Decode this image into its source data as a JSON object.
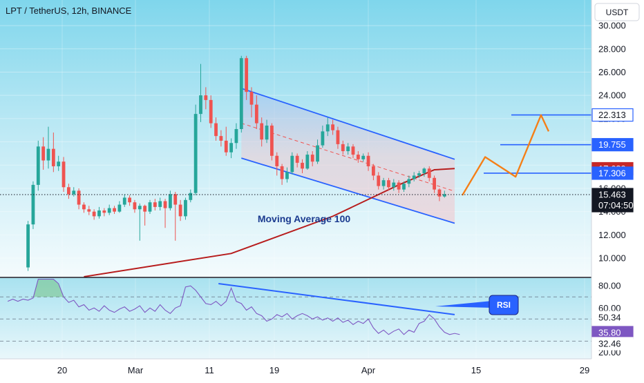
{
  "header": {
    "symbol": "LPT / TetherUS, 12h, BINANCE",
    "currency_button": "USDT"
  },
  "colors": {
    "up": "#26a69a",
    "down": "#ef5350",
    "channel": "#2962ff",
    "ma": "#b71c1c",
    "projection": "#f57f17",
    "rsi_line": "#7e57c2",
    "label_blue": "#2962ff",
    "label_red": "#c62828",
    "label_black": "#131722",
    "label_purple": "#7e57c2"
  },
  "chart_data": [
    {
      "type": "candlestick",
      "pane": "price",
      "title": "LPT / TetherUS, 12h, BINANCE",
      "ylim": [
        8.4,
        32.2
      ],
      "y_ticks": [
        "30.000",
        "28.000",
        "26.000",
        "24.000",
        "22.000",
        "20.000",
        "18.000",
        "16.000",
        "14.000",
        "12.000",
        "10.000"
      ],
      "x_ticks": [
        "20",
        "Mar",
        "11",
        "19",
        "Apr",
        "15",
        "29"
      ],
      "candles": [
        [
          9.2,
          12.9,
          8.9,
          13.2
        ],
        [
          12.9,
          16.3,
          12.5,
          16.6
        ],
        [
          16.3,
          19.6,
          15.8,
          20.1
        ],
        [
          19.6,
          18.4,
          17.6,
          20.4
        ],
        [
          18.4,
          19.4,
          17.7,
          21.3
        ],
        [
          19.4,
          17.9,
          17.4,
          20.8
        ],
        [
          17.9,
          18.3,
          17.5,
          18.8
        ],
        [
          18.3,
          16.1,
          15.7,
          18.7
        ],
        [
          16.1,
          15.5,
          15.1,
          16.4
        ],
        [
          15.5,
          15.8,
          15.3,
          16.1
        ],
        [
          15.8,
          14.6,
          14.2,
          16.0
        ],
        [
          14.6,
          14.2,
          13.9,
          14.8
        ],
        [
          14.2,
          14.0,
          13.7,
          14.5
        ],
        [
          14.0,
          13.6,
          13.3,
          14.2
        ],
        [
          13.6,
          14.1,
          13.4,
          14.4
        ],
        [
          14.1,
          13.9,
          13.6,
          14.3
        ],
        [
          13.9,
          14.3,
          13.7,
          14.6
        ],
        [
          14.3,
          14.0,
          13.8,
          14.5
        ],
        [
          14.0,
          14.6,
          13.9,
          14.9
        ],
        [
          14.6,
          15.2,
          14.4,
          15.5
        ],
        [
          15.2,
          14.8,
          14.5,
          15.4
        ],
        [
          14.8,
          14.2,
          13.9,
          15.0
        ],
        [
          14.2,
          14.5,
          11.5,
          14.7
        ],
        [
          14.5,
          14.0,
          12.8,
          14.6
        ],
        [
          14.0,
          14.8,
          13.8,
          15.0
        ],
        [
          14.8,
          14.4,
          14.1,
          15.1
        ],
        [
          14.4,
          14.9,
          14.1,
          15.2
        ],
        [
          14.9,
          14.3,
          12.6,
          15.1
        ],
        [
          14.3,
          15.5,
          14.1,
          15.8
        ],
        [
          15.5,
          14.6,
          11.5,
          15.7
        ],
        [
          14.6,
          13.6,
          13.2,
          15.0
        ],
        [
          13.6,
          15.0,
          13.3,
          15.2
        ],
        [
          15.0,
          15.6,
          14.8,
          15.9
        ],
        [
          15.6,
          22.4,
          15.4,
          23.2
        ],
        [
          22.4,
          24.0,
          21.7,
          26.7
        ],
        [
          24.0,
          23.6,
          22.8,
          24.7
        ],
        [
          23.6,
          21.6,
          21.2,
          24.0
        ],
        [
          21.6,
          20.5,
          20.1,
          22.1
        ],
        [
          20.5,
          20.1,
          19.6,
          21.0
        ],
        [
          20.1,
          19.1,
          18.8,
          21.3
        ],
        [
          19.1,
          19.9,
          18.6,
          20.3
        ],
        [
          19.9,
          21.1,
          19.4,
          21.6
        ],
        [
          21.1,
          27.2,
          20.8,
          27.4
        ],
        [
          27.2,
          24.3,
          23.6,
          27.4
        ],
        [
          24.3,
          23.2,
          22.1,
          24.7
        ],
        [
          23.2,
          21.6,
          21.1,
          24.0
        ],
        [
          21.6,
          20.2,
          19.6,
          22.1
        ],
        [
          20.2,
          21.4,
          19.9,
          21.9
        ],
        [
          21.4,
          18.8,
          18.4,
          21.6
        ],
        [
          18.8,
          17.9,
          17.1,
          19.1
        ],
        [
          17.9,
          16.8,
          16.3,
          18.1
        ],
        [
          16.8,
          17.4,
          16.5,
          17.8
        ],
        [
          17.4,
          18.8,
          17.2,
          19.1
        ],
        [
          18.8,
          18.2,
          17.8,
          19.0
        ],
        [
          18.2,
          17.7,
          17.3,
          18.5
        ],
        [
          17.7,
          18.9,
          17.6,
          19.2
        ],
        [
          18.9,
          18.3,
          17.9,
          19.2
        ],
        [
          18.3,
          19.7,
          18.1,
          20.2
        ],
        [
          19.7,
          20.9,
          19.5,
          21.4
        ],
        [
          20.9,
          21.5,
          20.5,
          22.1
        ],
        [
          21.5,
          21.0,
          20.6,
          21.9
        ],
        [
          21.0,
          19.8,
          19.4,
          21.3
        ],
        [
          19.8,
          19.2,
          18.9,
          20.1
        ],
        [
          19.2,
          19.6,
          18.9,
          19.9
        ],
        [
          19.6,
          18.9,
          18.6,
          19.8
        ],
        [
          18.9,
          18.5,
          18.2,
          19.2
        ],
        [
          18.5,
          18.8,
          18.3,
          19.0
        ],
        [
          18.8,
          17.9,
          17.5,
          19.1
        ],
        [
          17.9,
          17.1,
          16.7,
          18.1
        ],
        [
          17.1,
          16.2,
          15.9,
          17.4
        ],
        [
          16.2,
          16.7,
          15.9,
          16.9
        ],
        [
          16.7,
          16.1,
          15.8,
          16.9
        ],
        [
          16.1,
          16.5,
          15.8,
          16.8
        ],
        [
          16.5,
          15.9,
          15.6,
          16.7
        ],
        [
          15.9,
          16.4,
          15.7,
          16.6
        ],
        [
          16.4,
          16.8,
          16.1,
          17.1
        ],
        [
          16.8,
          17.1,
          16.6,
          17.4
        ],
        [
          17.1,
          17.3,
          16.9,
          17.5
        ],
        [
          17.3,
          17.7,
          17.0,
          17.8
        ],
        [
          17.7,
          16.9,
          16.6,
          17.9
        ],
        [
          16.9,
          15.9,
          15.6,
          17.1
        ],
        [
          15.9,
          15.3,
          14.9,
          16.0
        ],
        [
          15.3,
          15.5,
          15.2,
          15.8
        ]
      ],
      "price_labels": [
        {
          "value": "22.313",
          "style": "blue-outline"
        },
        {
          "value": "19.755",
          "style": "blue"
        },
        {
          "value": "17.689",
          "style": "red"
        },
        {
          "value": "17.306",
          "style": "blue"
        },
        {
          "value": "15.463",
          "countdown": "07:04:50",
          "style": "black"
        }
      ],
      "annotations": [
        {
          "text": "Moving Average 100",
          "color": "#1a3a8f"
        }
      ],
      "series": [
        {
          "name": "Moving Average 100",
          "type": "line",
          "x_index": [
            11,
            40,
            60,
            73,
            80,
            84
          ],
          "values": [
            8.4,
            10.4,
            13.6,
            16.3,
            17.6,
            17.7
          ]
        }
      ],
      "channel": {
        "upper": {
          "from": [
            42,
            24.6
          ],
          "to": [
            84,
            18.5
          ]
        },
        "lower": {
          "from": [
            42,
            18.6
          ],
          "to": [
            84,
            13.0
          ]
        },
        "mid": {
          "from": [
            42,
            21.6
          ],
          "to": [
            84,
            15.75
          ]
        }
      },
      "target_levels": [
        22.313,
        19.755,
        17.306
      ],
      "projection_path": [
        [
          85.5,
          15.4
        ],
        [
          90,
          18.7
        ],
        [
          96,
          17.0
        ],
        [
          101,
          22.3
        ],
        [
          102.5,
          20.9
        ]
      ],
      "x_domain": [
        0,
        111
      ]
    },
    {
      "type": "line",
      "pane": "RSI",
      "ylim": [
        14.0,
        87.0
      ],
      "y_ticks": [
        "80.00",
        "60.00",
        "40.00",
        "20.00"
      ],
      "levels": [
        70,
        50,
        30
      ],
      "price_labels": [
        {
          "value": "50.34",
          "style": "plain"
        },
        {
          "value": "35.80",
          "style": "purple"
        },
        {
          "value": "32.46",
          "style": "plain"
        }
      ],
      "annotations": [
        {
          "text": "RSI"
        }
      ],
      "trendline": {
        "from": [
          37.5,
          82
        ],
        "to": [
          84,
          54
        ]
      },
      "x_index_start": -4,
      "values": [
        66,
        68,
        66,
        68,
        67,
        69,
        86,
        86,
        86,
        86,
        82,
        70,
        65,
        67,
        61,
        63,
        58,
        60,
        57,
        62,
        58,
        56,
        59,
        61,
        57,
        59,
        62,
        56,
        60,
        57,
        63,
        58,
        55,
        60,
        62,
        79,
        80,
        76,
        70,
        64,
        63,
        66,
        62,
        66,
        78,
        66,
        64,
        58,
        61,
        55,
        53,
        48,
        50,
        54,
        52,
        55,
        50,
        53,
        55,
        53,
        50,
        52,
        49,
        51,
        48,
        51,
        47,
        49,
        45,
        48,
        46,
        50,
        42,
        37,
        40,
        36,
        39,
        41,
        36,
        40,
        38,
        46,
        48,
        54,
        50,
        43,
        38,
        36,
        37,
        36
      ]
    }
  ]
}
